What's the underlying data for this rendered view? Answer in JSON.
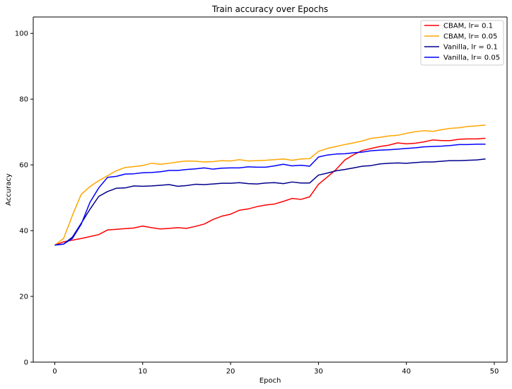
{
  "chart_data": {
    "type": "line",
    "title": "Train accuracy over Epochs",
    "xlabel": "Epoch",
    "ylabel": "Accuracy",
    "xlim": [
      -2.45,
      51.45
    ],
    "ylim": [
      0,
      105
    ],
    "xticks": [
      0,
      10,
      20,
      30,
      40,
      50
    ],
    "yticks": [
      0,
      20,
      40,
      60,
      80,
      100
    ],
    "grid": false,
    "legend_position": "top-right",
    "x": [
      0,
      1,
      2,
      3,
      4,
      5,
      6,
      7,
      8,
      9,
      10,
      11,
      12,
      13,
      14,
      15,
      16,
      17,
      18,
      19,
      20,
      21,
      22,
      23,
      24,
      25,
      26,
      27,
      28,
      29,
      30,
      31,
      32,
      33,
      34,
      35,
      36,
      37,
      38,
      39,
      40,
      41,
      42,
      43,
      44,
      45,
      46,
      47,
      48,
      49
    ],
    "series": [
      {
        "name": "CBAM, lr= 0.1",
        "color": "#ff0000",
        "values": [
          35.6,
          36.6,
          37.1,
          37.6,
          38.2,
          38.8,
          40.2,
          40.4,
          40.6,
          40.8,
          41.4,
          40.9,
          40.5,
          40.7,
          40.9,
          40.7,
          41.3,
          42.0,
          43.4,
          44.4,
          45.0,
          46.2,
          46.6,
          47.3,
          47.8,
          48.1,
          48.9,
          49.8,
          49.5,
          50.3,
          54.1,
          56.3,
          58.6,
          61.5,
          63.1,
          64.4,
          65.0,
          65.6,
          66.0,
          66.7,
          66.4,
          66.6,
          67.0,
          67.6,
          67.4,
          67.4,
          67.8,
          67.9,
          67.9,
          68.1
        ]
      },
      {
        "name": "CBAM, lr= 0.05",
        "color": "#ffa500",
        "values": [
          35.6,
          37.6,
          44.6,
          51.0,
          53.4,
          55.2,
          56.7,
          58.2,
          59.2,
          59.5,
          59.8,
          60.5,
          60.2,
          60.5,
          60.9,
          61.2,
          61.1,
          60.9,
          61.0,
          61.3,
          61.2,
          61.6,
          61.2,
          61.3,
          61.4,
          61.6,
          61.8,
          61.4,
          61.8,
          61.9,
          64.1,
          65.0,
          65.6,
          66.2,
          66.7,
          67.3,
          68.1,
          68.4,
          68.8,
          69.0,
          69.6,
          70.1,
          70.4,
          70.2,
          70.7,
          71.1,
          71.3,
          71.7,
          71.9,
          72.1
        ]
      },
      {
        "name": "Vanilla, lr = 0.1",
        "color": "#00008b",
        "values": [
          35.6,
          35.9,
          38.0,
          42.2,
          46.5,
          50.4,
          51.9,
          52.9,
          53.0,
          53.6,
          53.5,
          53.6,
          53.8,
          54.0,
          53.5,
          53.7,
          54.1,
          54.0,
          54.2,
          54.4,
          54.4,
          54.6,
          54.3,
          54.2,
          54.5,
          54.6,
          54.3,
          54.8,
          54.5,
          54.5,
          56.9,
          57.5,
          58.2,
          58.6,
          59.1,
          59.6,
          59.8,
          60.3,
          60.5,
          60.6,
          60.5,
          60.7,
          60.9,
          60.9,
          61.1,
          61.3,
          61.3,
          61.4,
          61.5,
          61.8
        ]
      },
      {
        "name": "Vanilla, lr= 0.05",
        "color": "#0000ff",
        "values": [
          35.6,
          35.9,
          37.6,
          41.9,
          48.6,
          53.0,
          56.2,
          56.5,
          57.2,
          57.3,
          57.6,
          57.7,
          57.9,
          58.3,
          58.3,
          58.6,
          58.8,
          59.1,
          58.7,
          59.0,
          59.1,
          59.1,
          59.4,
          59.3,
          59.3,
          59.7,
          60.2,
          59.7,
          59.9,
          59.6,
          62.4,
          63.0,
          63.3,
          63.4,
          63.7,
          63.9,
          64.3,
          64.5,
          64.6,
          64.8,
          65.0,
          65.2,
          65.5,
          65.6,
          65.7,
          65.9,
          66.2,
          66.2,
          66.3,
          66.3
        ]
      }
    ]
  }
}
